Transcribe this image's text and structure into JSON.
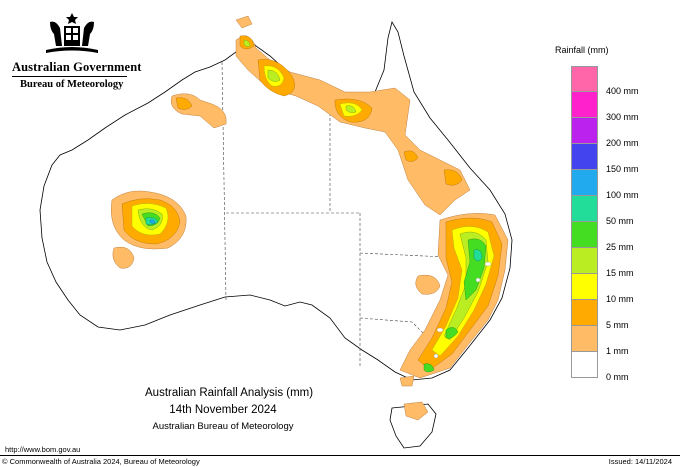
{
  "header": {
    "government": "Australian Government",
    "bureau": "Bureau of Meteorology"
  },
  "legend": {
    "title": "Rainfall (mm)",
    "classes": [
      {
        "label": "400 mm",
        "color": "#ff66aa"
      },
      {
        "label": "300 mm",
        "color": "#ff22cc"
      },
      {
        "label": "200 mm",
        "color": "#bb22ee"
      },
      {
        "label": "150 mm",
        "color": "#4444ee"
      },
      {
        "label": "100 mm",
        "color": "#22aaee"
      },
      {
        "label": "50 mm",
        "color": "#22dd99"
      },
      {
        "label": "25 mm",
        "color": "#44dd22"
      },
      {
        "label": "15 mm",
        "color": "#bbee22"
      },
      {
        "label": "10 mm",
        "color": "#ffff00"
      },
      {
        "label": "5 mm",
        "color": "#ffaa00"
      },
      {
        "label": "1 mm",
        "color": "#ffbb66"
      },
      {
        "label": "0 mm",
        "color": "#ffffff"
      }
    ]
  },
  "map": {
    "title": "Australian Rainfall Analysis (mm)",
    "date": "14th November 2024",
    "organisation": "Australian Bureau of Meteorology"
  },
  "footer": {
    "url": "http://www.bom.gov.au",
    "copyright": "© Commonwealth of Australia 2024, Bureau of Meteorology",
    "issued": "Issued: 14/11/2024"
  }
}
